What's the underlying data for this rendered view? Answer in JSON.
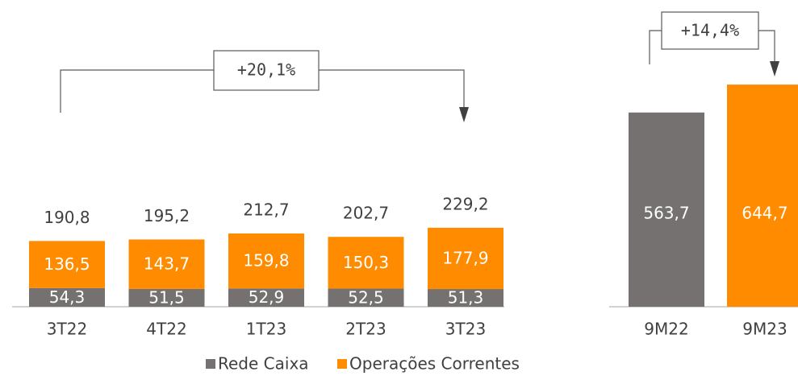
{
  "charts": [
    {
      "type": "stacked_bar",
      "categories": [
        "3T22",
        "4T22",
        "1T23",
        "2T23",
        "3T23"
      ],
      "series": [
        {
          "name": "Rede Caixa",
          "color": "#767171",
          "values": [
            54.3,
            51.5,
            52.9,
            52.5,
            51.3
          ],
          "value_labels": [
            "54,3",
            "51,5",
            "52,9",
            "52,5",
            "51,3"
          ]
        },
        {
          "name": "Operações Correntes",
          "color": "#ff8c00",
          "values": [
            136.5,
            143.7,
            159.8,
            150.3,
            177.9
          ],
          "value_labels": [
            "136,5",
            "143,7",
            "159,8",
            "150,3",
            "177,9"
          ]
        }
      ],
      "totals": [
        190.8,
        195.2,
        212.7,
        202.7,
        229.2
      ],
      "total_labels": [
        "190,8",
        "195,2",
        "212,7",
        "202,7",
        "229,2"
      ],
      "annotation": "+20,1%"
    },
    {
      "type": "bar",
      "categories": [
        "9M22",
        "9M23"
      ],
      "values": [
        563.7,
        644.7
      ],
      "value_labels": [
        "563,7",
        "644,7"
      ],
      "colors": [
        "#767171",
        "#ff8c00"
      ],
      "annotation": "+14,4%"
    }
  ]
}
